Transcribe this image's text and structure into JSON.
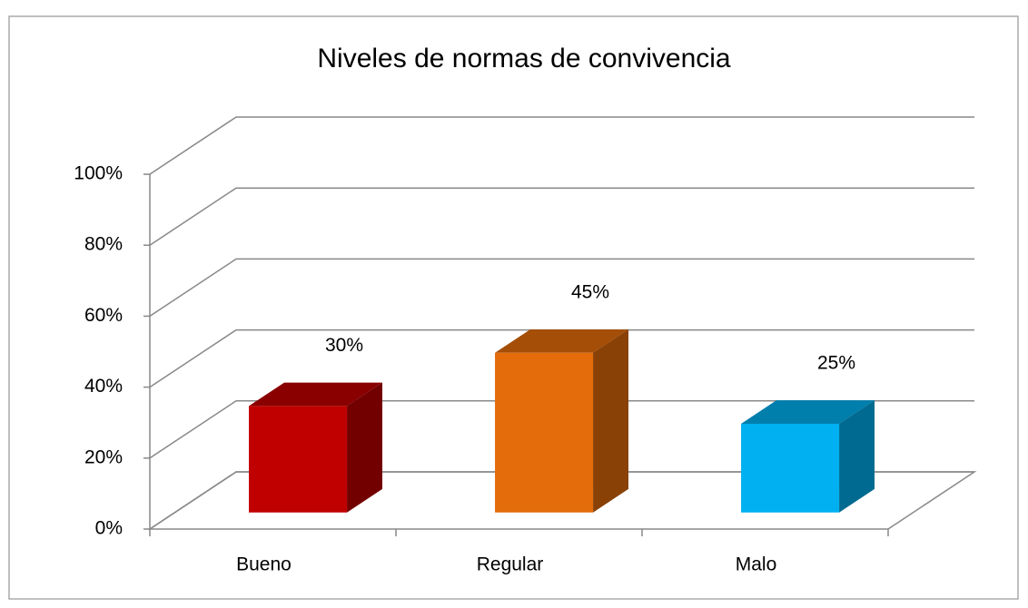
{
  "chart_data": {
    "type": "bar3d",
    "title": "Niveles de normas de convivencia",
    "categories": [
      "Bueno",
      "Regular",
      "Malo"
    ],
    "values": [
      30,
      45,
      25
    ],
    "value_labels": [
      "30%",
      "45%",
      "25%"
    ],
    "colors": [
      "#c00000",
      "#e46c0a",
      "#00b0f0"
    ],
    "ylim": [
      0,
      100
    ],
    "yticks": [
      {
        "value": 0,
        "label": "0%"
      },
      {
        "value": 20,
        "label": "20%"
      },
      {
        "value": 40,
        "label": "40%"
      },
      {
        "value": 60,
        "label": "60%"
      },
      {
        "value": 80,
        "label": "80%"
      },
      {
        "value": 100,
        "label": "100%"
      }
    ],
    "grid": true
  }
}
